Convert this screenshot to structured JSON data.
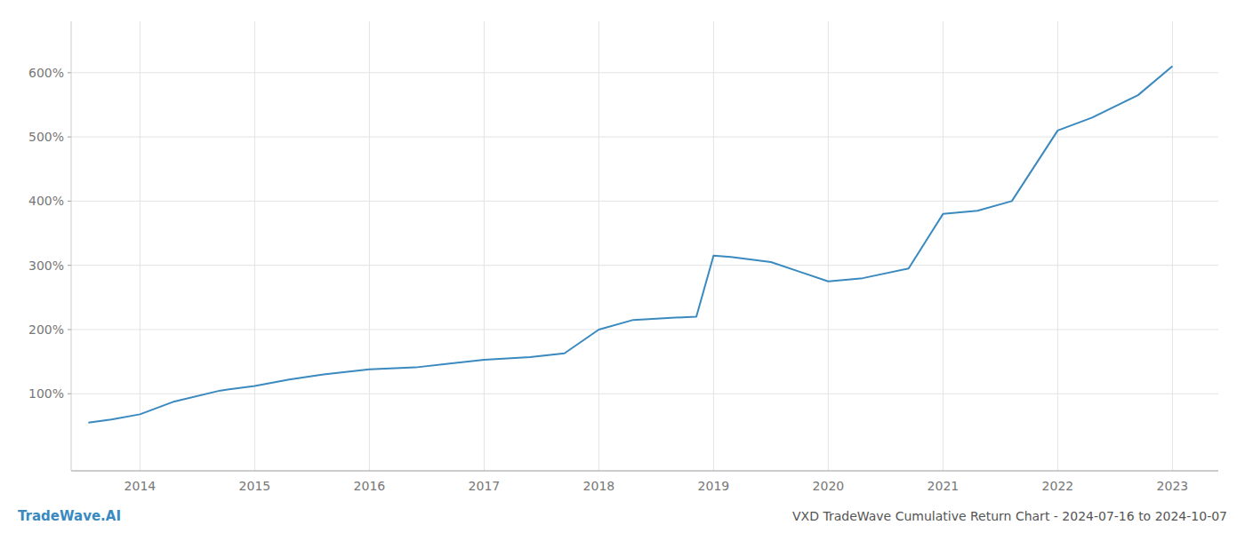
{
  "chart_data": {
    "type": "line",
    "title": "VXD TradeWave Cumulative Return Chart - 2024-07-16 to 2024-10-07",
    "annotations": [
      "TradeWave.AI"
    ],
    "x": [
      2013.55,
      2013.75,
      2014.0,
      2014.3,
      2014.7,
      2015.0,
      2015.3,
      2015.6,
      2016.0,
      2016.4,
      2016.7,
      2017.0,
      2017.4,
      2017.7,
      2018.0,
      2018.3,
      2018.6,
      2018.85,
      2019.0,
      2019.15,
      2019.5,
      2019.75,
      2020.0,
      2020.3,
      2020.7,
      2021.0,
      2021.3,
      2021.6,
      2022.0,
      2022.3,
      2022.7,
      2023.0
    ],
    "values": [
      55,
      60,
      68,
      88,
      105,
      112,
      122,
      130,
      138,
      141,
      147,
      153,
      157,
      163,
      200,
      215,
      218,
      220,
      315,
      313,
      305,
      290,
      275,
      280,
      295,
      380,
      385,
      400,
      510,
      530,
      565,
      610
    ],
    "color": "#3a8abf",
    "xlim": [
      2013.4,
      2023.4
    ],
    "ylim": [
      -20,
      680
    ],
    "xticks": [
      2014,
      2015,
      2016,
      2017,
      2018,
      2019,
      2020,
      2021,
      2022,
      2023
    ],
    "yticks": [
      {
        "value": 100,
        "label": "100%"
      },
      {
        "value": 200,
        "label": "200%"
      },
      {
        "value": 300,
        "label": "300%"
      },
      {
        "value": 400,
        "label": "400%"
      },
      {
        "value": 500,
        "label": "500%"
      },
      {
        "value": 600,
        "label": "600%"
      }
    ],
    "grid": true
  }
}
